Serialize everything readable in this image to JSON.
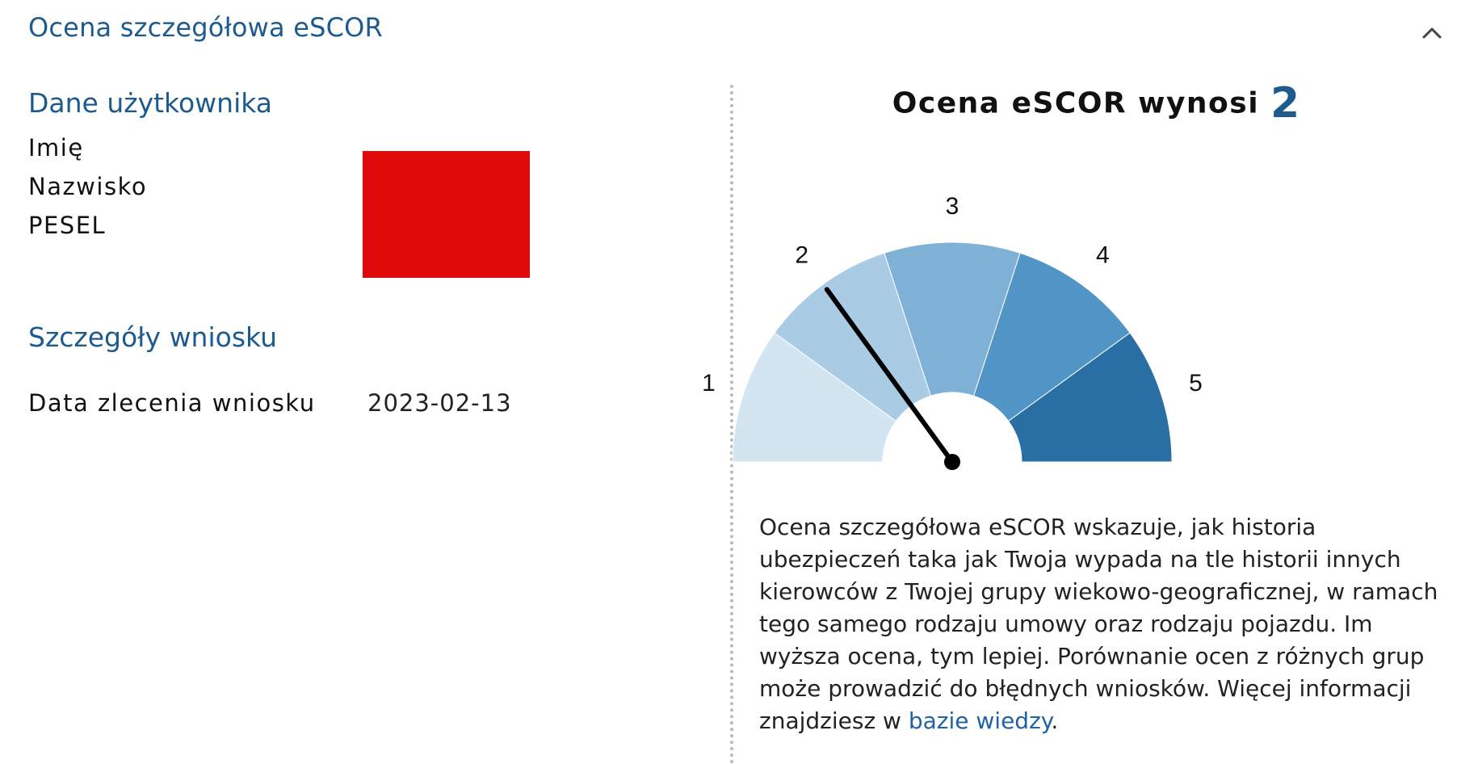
{
  "section": {
    "title": "Ocena szczegółowa eSCOR",
    "collapse_icon": "chevron-up-icon"
  },
  "user_data": {
    "heading": "Dane użytkownika",
    "fields": [
      {
        "label": "Imię"
      },
      {
        "label": "Nazwisko"
      },
      {
        "label": "PESEL"
      }
    ],
    "redaction_color": "#e00a0a"
  },
  "application": {
    "heading": "Szczegóły wniosku",
    "order_date_label": "Data zlecenia wniosku",
    "order_date_value": "2023-02-13"
  },
  "score": {
    "label": "Ocena eSCOR wynosi",
    "value": "2",
    "value_number": 2,
    "scale_min": 1,
    "scale_max": 5,
    "tick_labels": [
      "1",
      "2",
      "3",
      "4",
      "5"
    ],
    "segment_colors": [
      "#d4e5f2",
      "#aacbe4",
      "#7fb0d6",
      "#5095c5",
      "#2a6fa3"
    ],
    "needle_color": "#000000"
  },
  "description": {
    "text": "Ocena szczegółowa eSCOR wskazuje, jak historia ubezpieczeń taka jak Twoja wypada na tle historii innych kierowców z Twojej grupy wiekowo-geograficznej, w ramach tego samego rodzaju umowy oraz rodzaju pojazdu. Im wyższa ocena, tym lepiej. Porównanie ocen z różnych grup może prowadzić do błędnych wniosków. Więcej informacji znajdziesz w",
    "link_text": "bazie wiedzy",
    "suffix": "."
  },
  "colors": {
    "accent": "#1d5a8e",
    "link": "#1f63a6",
    "divider": "#b9b9b9"
  }
}
